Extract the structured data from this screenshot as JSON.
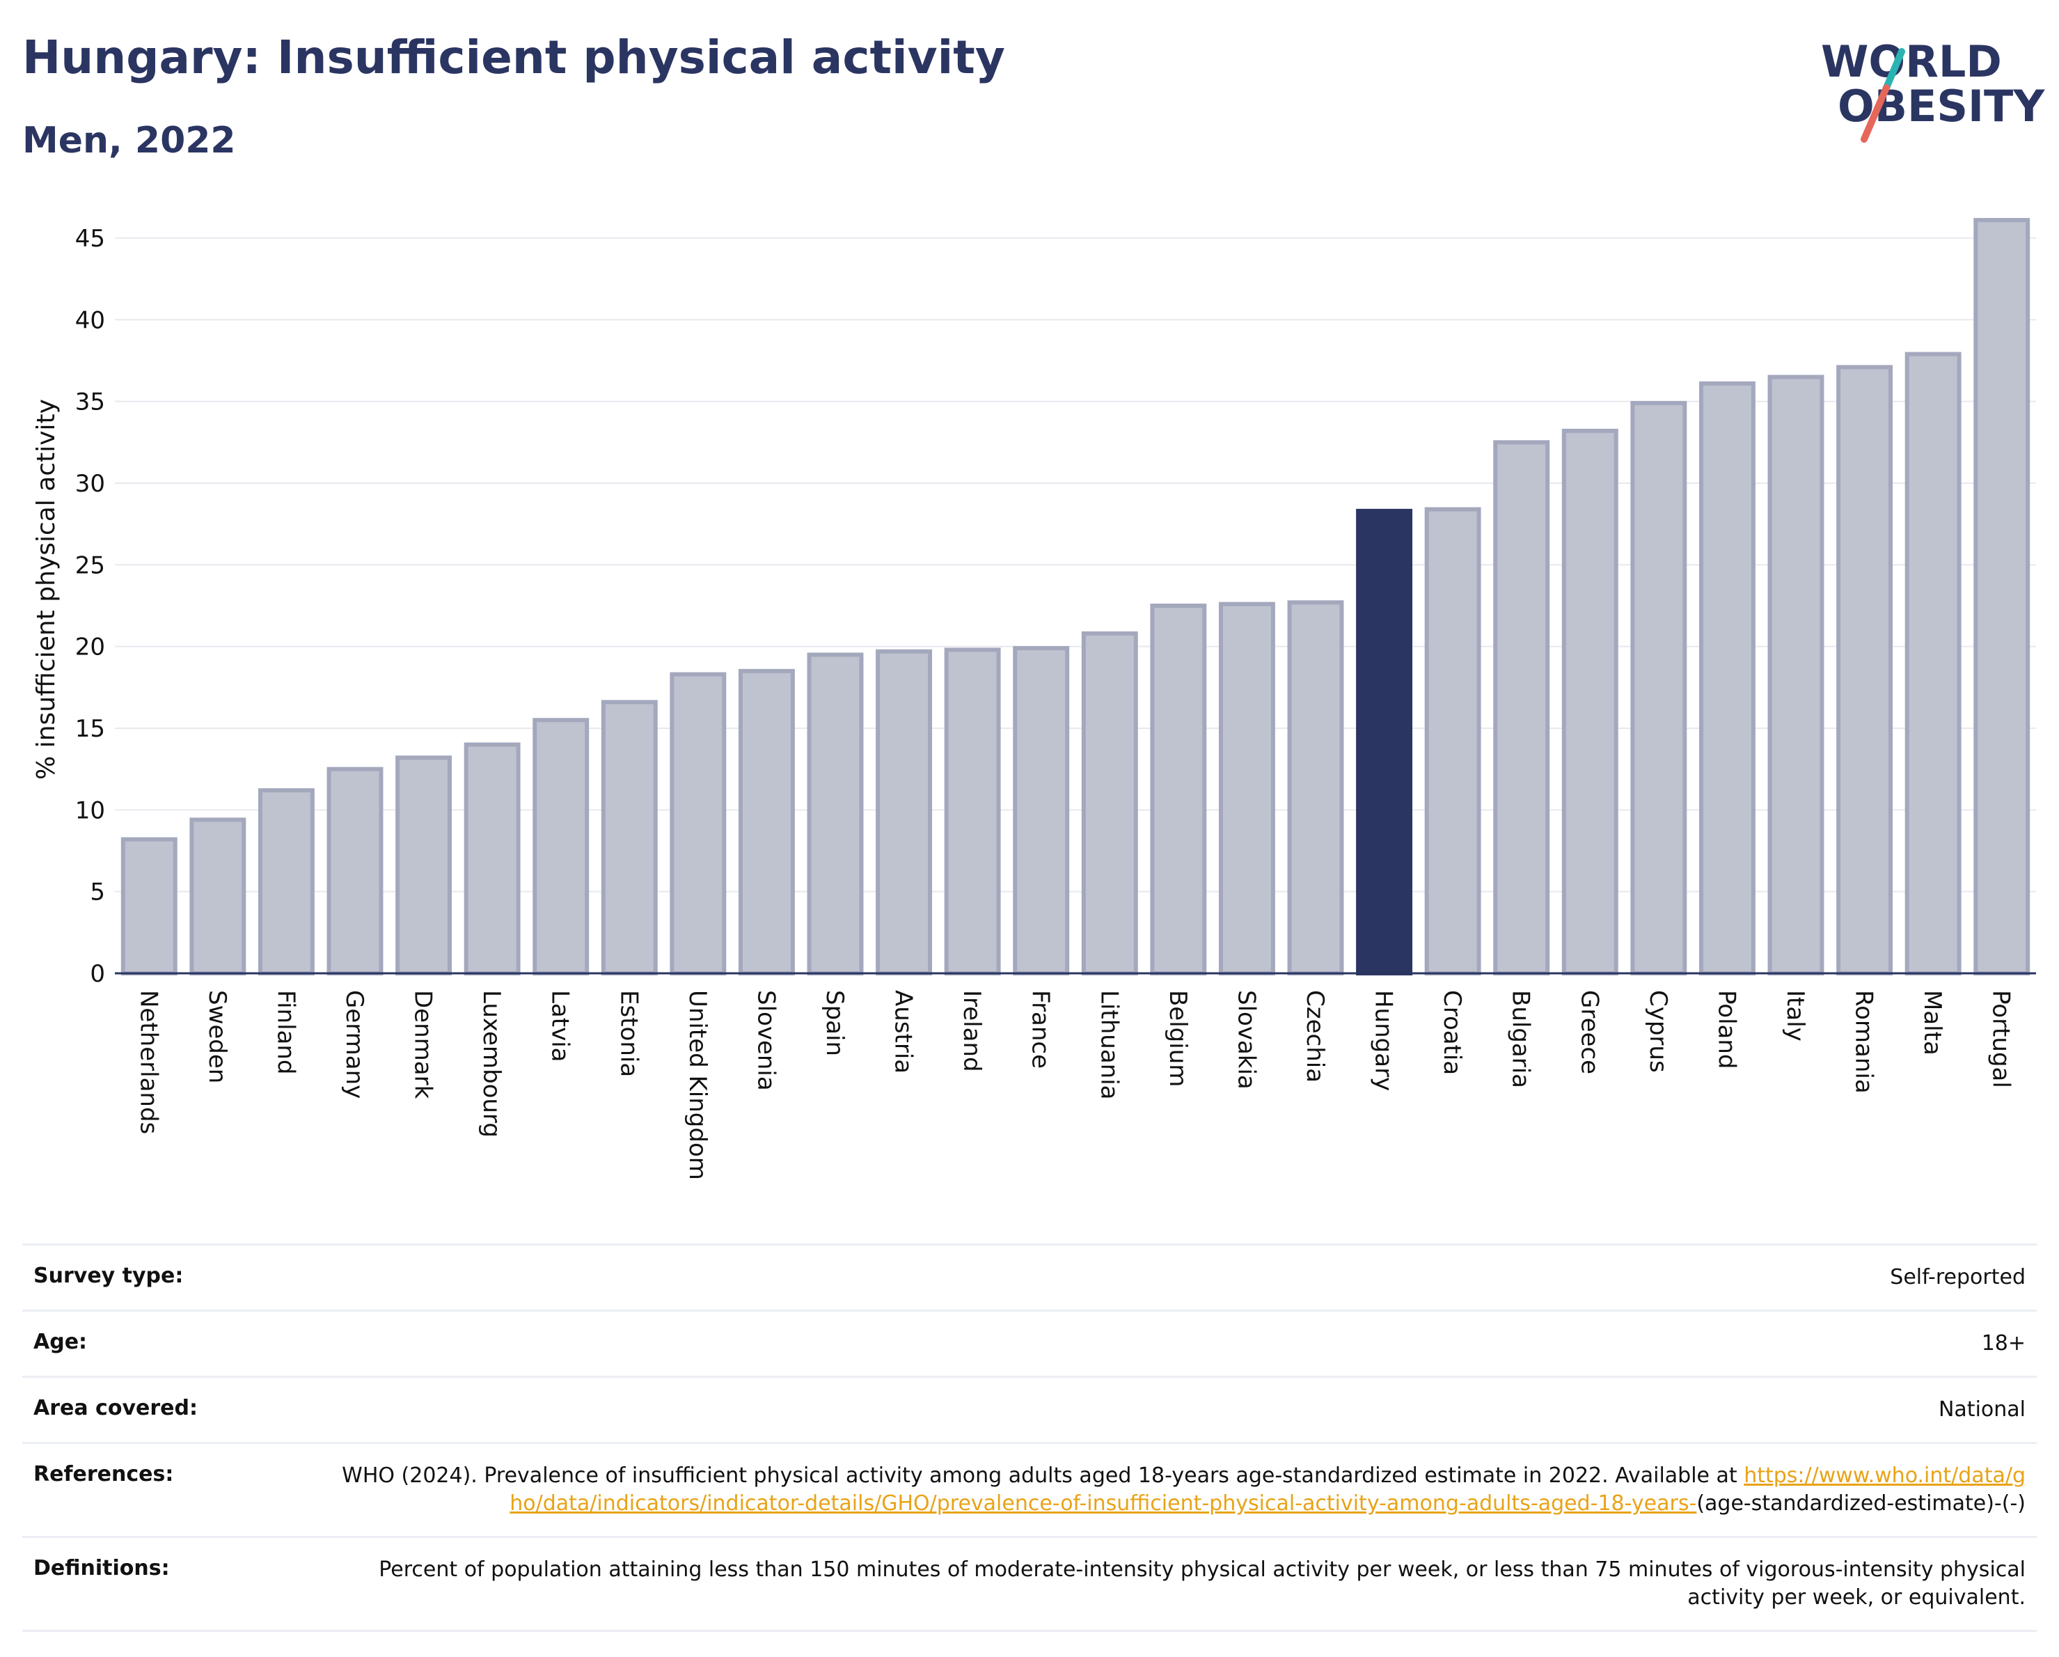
{
  "header": {
    "title": "Hungary: Insufficient physical activity",
    "subtitle": "Men, 2022"
  },
  "logo": {
    "line1": "WORLD",
    "line2": "OBESITY",
    "slash_colors": [
      "#2ab3b1",
      "#e5675a"
    ],
    "text_color": "#2b3562"
  },
  "colors": {
    "highlight": "#2b3562",
    "bar_fill": "#bfc2cf",
    "bar_stroke": "#a4a8bd",
    "grid": "#e8e9ef",
    "accent_link": "#e8a317"
  },
  "chart_data": {
    "type": "bar",
    "ylabel": "% insufficient physical activity",
    "ylim": [
      0,
      47
    ],
    "yticks": [
      0,
      5,
      10,
      15,
      20,
      25,
      30,
      35,
      40,
      45
    ],
    "grid": true,
    "highlight": "Hungary",
    "categories": [
      "Netherlands",
      "Sweden",
      "Finland",
      "Germany",
      "Denmark",
      "Luxembourg",
      "Latvia",
      "Estonia",
      "United Kingdom",
      "Slovenia",
      "Spain",
      "Austria",
      "Ireland",
      "France",
      "Lithuania",
      "Belgium",
      "Slovakia",
      "Czechia",
      "Hungary",
      "Croatia",
      "Bulgaria",
      "Greece",
      "Cyprus",
      "Poland",
      "Italy",
      "Romania",
      "Malta",
      "Portugal"
    ],
    "values": [
      8.2,
      9.4,
      11.2,
      12.5,
      13.2,
      14.0,
      15.5,
      16.6,
      18.3,
      18.5,
      19.5,
      19.7,
      19.8,
      19.9,
      20.8,
      22.5,
      22.6,
      22.7,
      28.3,
      28.4,
      32.5,
      33.2,
      34.9,
      36.1,
      36.5,
      37.1,
      37.9,
      46.1
    ]
  },
  "meta": {
    "rows": [
      {
        "label": "Survey type:",
        "value": "Self-reported"
      },
      {
        "label": "Age:",
        "value": "18+"
      },
      {
        "label": "Area covered:",
        "value": "National"
      }
    ],
    "references": {
      "label": "References:",
      "text_before": "WHO (2024). Prevalence of insufficient physical activity among adults aged 18-years age-standardized estimate in 2022. Available at ",
      "link": "https://www.who.int/data/gho/data/indicators/indicator-details/GHO/prevalence-of-insufficient-physical-activity-among-adults-aged-18-years-",
      "text_after": "(age-standardized-estimate)-(-)"
    },
    "definitions": {
      "label": "Definitions:",
      "value": "Percent of population attaining less than 150 minutes of moderate-intensity physical activity per week, or less than 75 minutes of vigorous-intensity physical activity per week, or equivalent."
    }
  }
}
